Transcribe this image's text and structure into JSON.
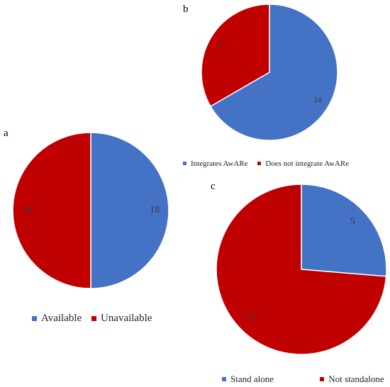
{
  "colors": {
    "blue": "#4472C4",
    "red": "#C00000"
  },
  "chart_data": [
    {
      "type": "pie",
      "panel": "a",
      "labels": [
        "Available",
        "Unavailable"
      ],
      "values": [
        18,
        18
      ],
      "value_labels": [
        "18",
        "18"
      ],
      "colors": [
        "#4472C4",
        "#C00000"
      ],
      "legend_position": "bottom"
    },
    {
      "type": "pie",
      "panel": "b",
      "labels": [
        "Integrates AwARe",
        "Does not integrate AwARe"
      ],
      "values": [
        24,
        12
      ],
      "value_labels": [
        "24",
        "12"
      ],
      "colors": [
        "#4472C4",
        "#C00000"
      ],
      "legend_position": "bottom"
    },
    {
      "type": "pie",
      "panel": "c",
      "labels": [
        "Stand alone",
        "Not standalone"
      ],
      "values": [
        5,
        14
      ],
      "value_labels": [
        "5",
        "14"
      ],
      "colors": [
        "#4472C4",
        "#C00000"
      ],
      "legend_position": "bottom"
    }
  ]
}
